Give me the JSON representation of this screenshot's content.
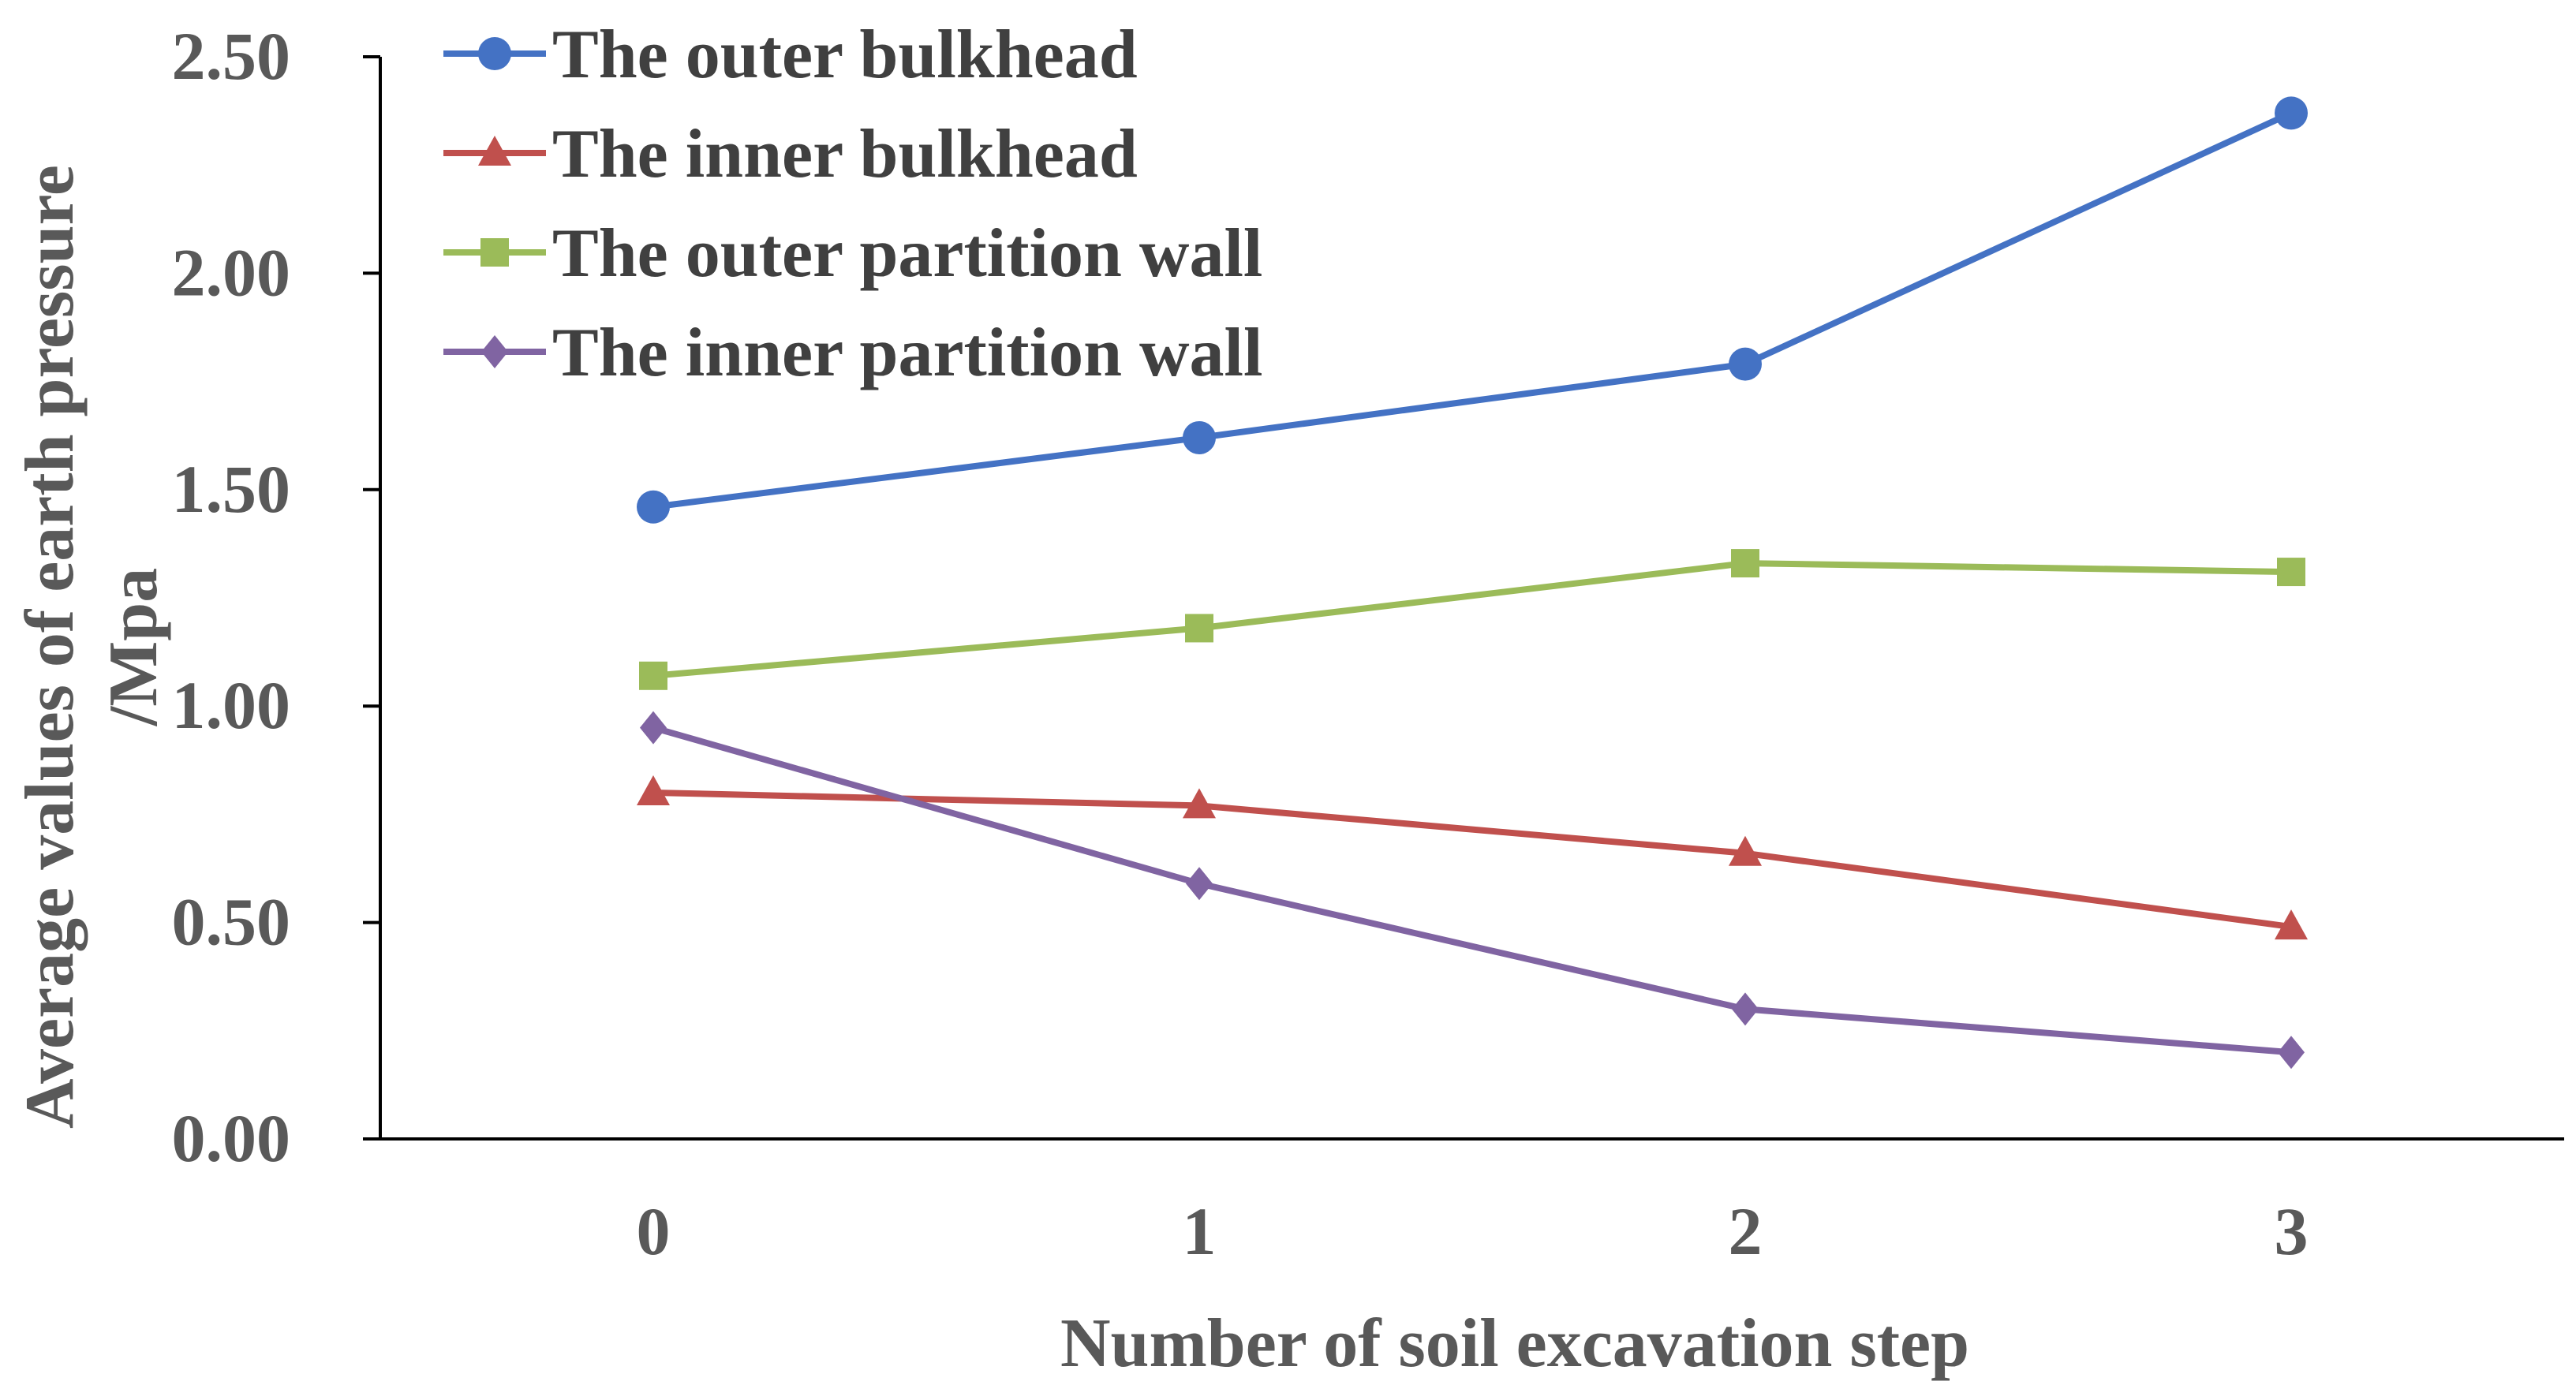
{
  "chart_data": {
    "type": "line",
    "title": "",
    "xlabel": "Number of soil excavation step",
    "ylabel_lines": [
      "Average values of earth pressure",
      "/Mpa"
    ],
    "x": [
      0,
      1,
      2,
      3
    ],
    "x_tick_labels": [
      "0",
      "1",
      "2",
      "3"
    ],
    "xlim": [
      -0.5,
      3.5
    ],
    "ylim": [
      0,
      2.5
    ],
    "y_ticks": [
      0,
      0.5,
      1.0,
      1.5,
      2.0,
      2.5
    ],
    "y_tick_labels": [
      "0.00",
      "0.50",
      "1.00",
      "1.50",
      "2.00",
      "2.50"
    ],
    "grid": false,
    "legend_position": "top-left",
    "series": [
      {
        "name": "The outer bulkhead",
        "color": "#4472C4",
        "marker": "circle",
        "values": [
          1.46,
          1.62,
          1.79,
          2.37
        ]
      },
      {
        "name": "The inner bulkhead",
        "color": "#C0504D",
        "marker": "triangle",
        "values": [
          0.8,
          0.77,
          0.66,
          0.49
        ]
      },
      {
        "name": "The outer partition wall",
        "color": "#9BBB59",
        "marker": "square",
        "values": [
          1.07,
          1.18,
          1.33,
          1.31
        ]
      },
      {
        "name": "The inner partition wall",
        "color": "#8064A2",
        "marker": "diamond",
        "values": [
          0.95,
          0.59,
          0.3,
          0.2
        ]
      }
    ]
  }
}
